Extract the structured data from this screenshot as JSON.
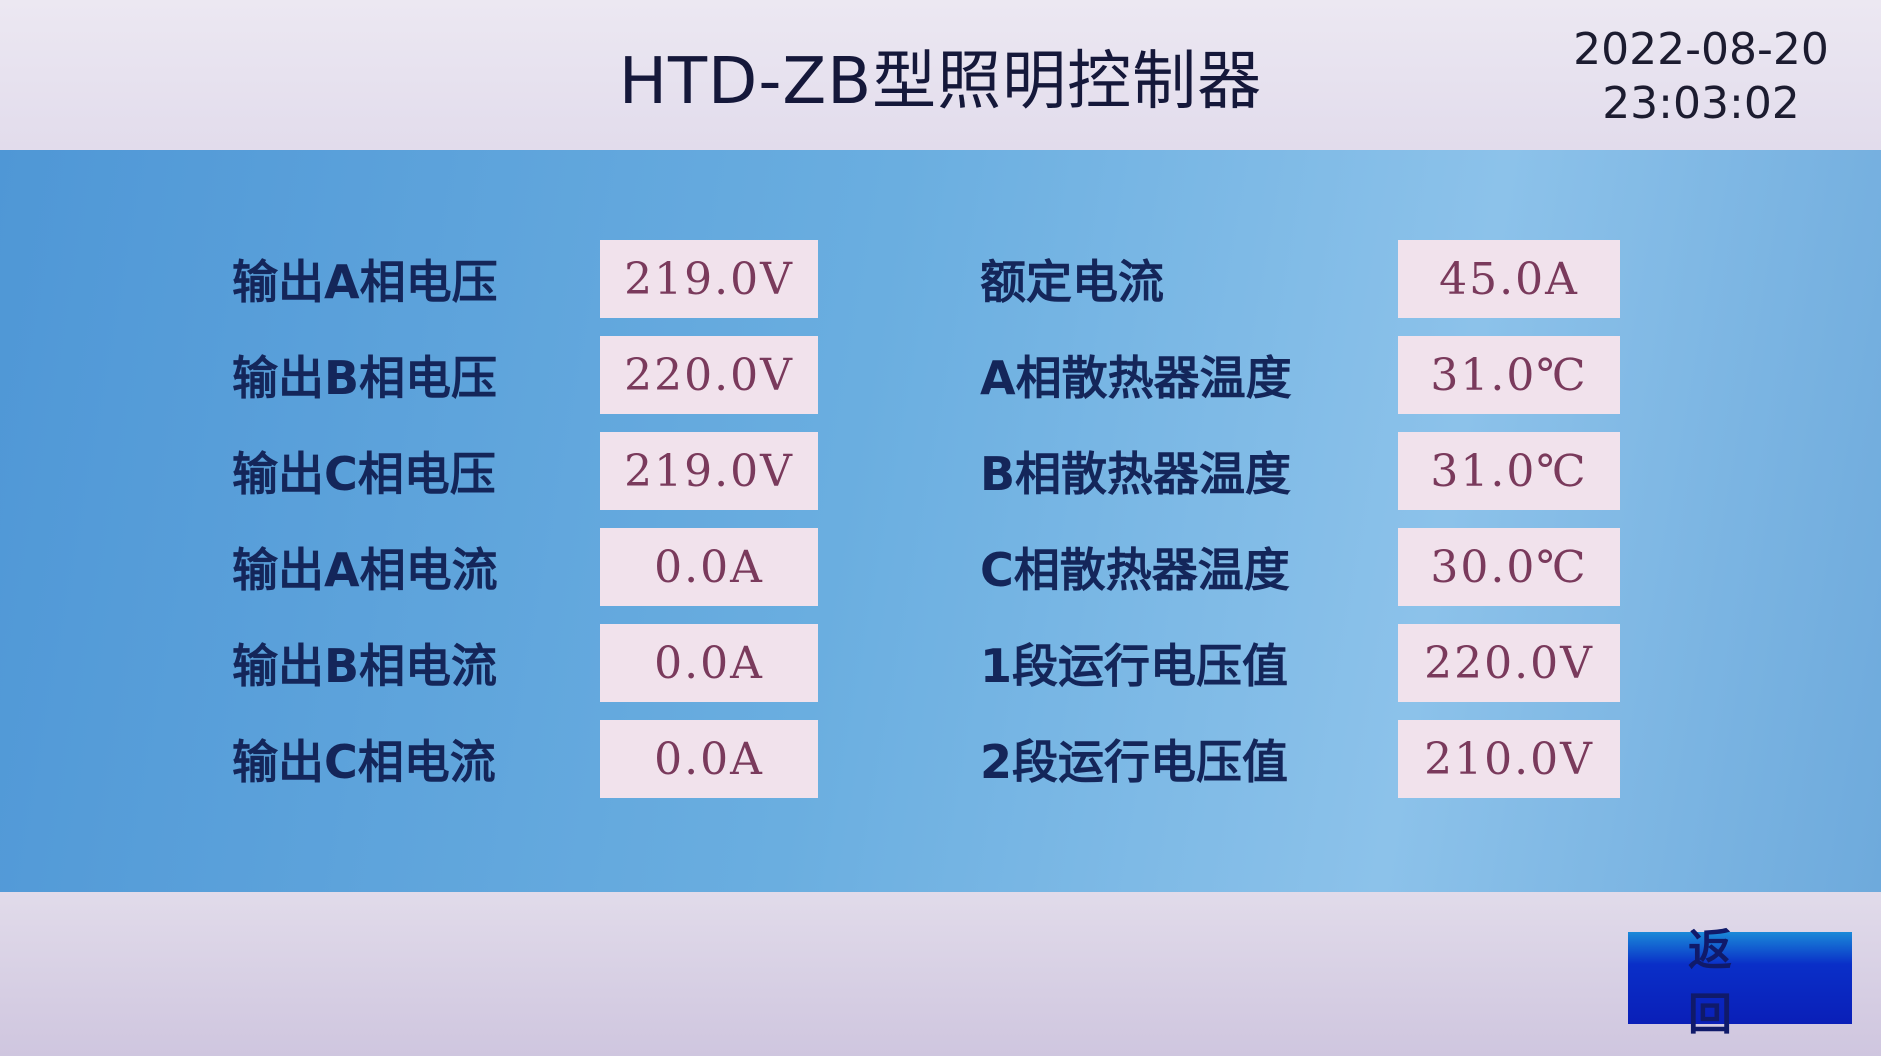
{
  "header": {
    "title": "HTD-ZB型照明控制器",
    "date": "2022-08-20",
    "time": "23:03:02"
  },
  "left": [
    {
      "label": "输出A相电压",
      "value": "219.0V"
    },
    {
      "label": "输出B相电压",
      "value": "220.0V"
    },
    {
      "label": "输出C相电压",
      "value": "219.0V"
    },
    {
      "label": "输出A相电流",
      "value": "0.0A"
    },
    {
      "label": "输出B相电流",
      "value": "0.0A"
    },
    {
      "label": "输出C相电流",
      "value": "0.0A"
    }
  ],
  "right": [
    {
      "label": "额定电流",
      "value": "45.0A"
    },
    {
      "label": "A相散热器温度",
      "value": "31.0℃"
    },
    {
      "label": "B相散热器温度",
      "value": "31.0℃"
    },
    {
      "label": "C相散热器温度",
      "value": "30.0℃"
    },
    {
      "label": "1段运行电压值",
      "value": "220.0V"
    },
    {
      "label": "2段运行电压值",
      "value": "210.0V"
    }
  ],
  "footer": {
    "back_label": "返回"
  }
}
